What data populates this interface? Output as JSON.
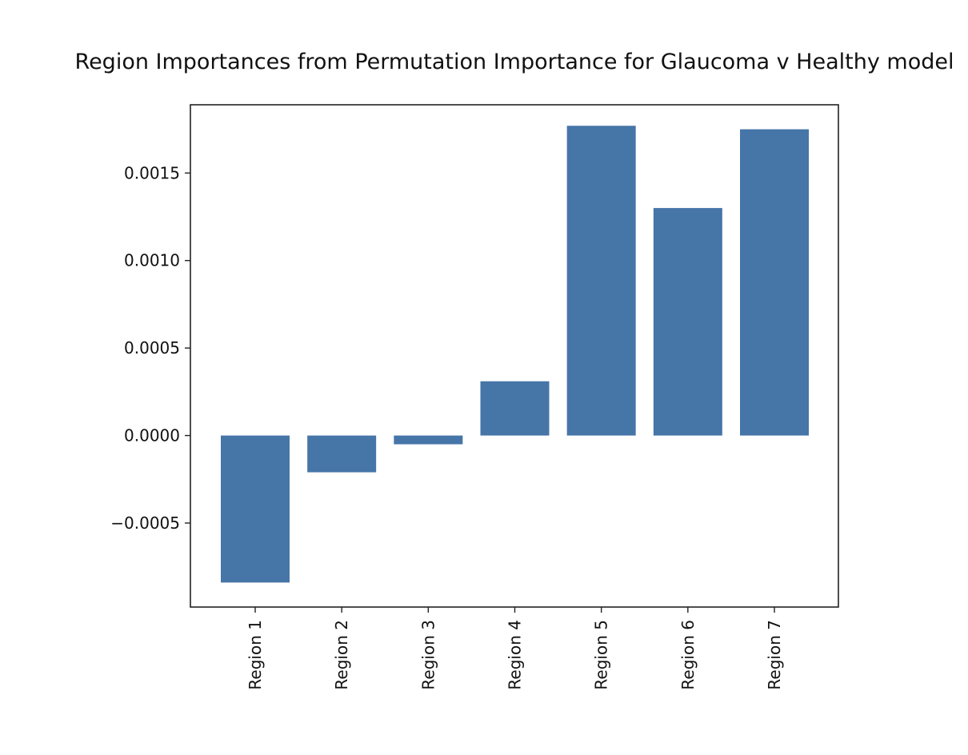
{
  "chart_data": {
    "type": "bar",
    "title": "Region Importances from Permutation Importance for Glaucoma v Healthy model",
    "xlabel": "",
    "ylabel": "",
    "categories": [
      "Region 1",
      "Region 2",
      "Region 3",
      "Region 4",
      "Region 5",
      "Region 6",
      "Region 7"
    ],
    "values": [
      -0.00084,
      -0.00021,
      -5e-05,
      0.00031,
      0.00177,
      0.0013,
      0.00175
    ],
    "ylim": [
      -0.00098,
      0.00189
    ],
    "yticks": [
      -0.0005,
      0.0,
      0.0005,
      0.001,
      0.0015
    ],
    "ytick_labels": [
      "−0.0005",
      "0.0000",
      "0.0005",
      "0.0010",
      "0.0015"
    ],
    "bar_color": "#4675a8",
    "x_tick_rotation": "vertical",
    "grid": false,
    "legend": "none"
  }
}
